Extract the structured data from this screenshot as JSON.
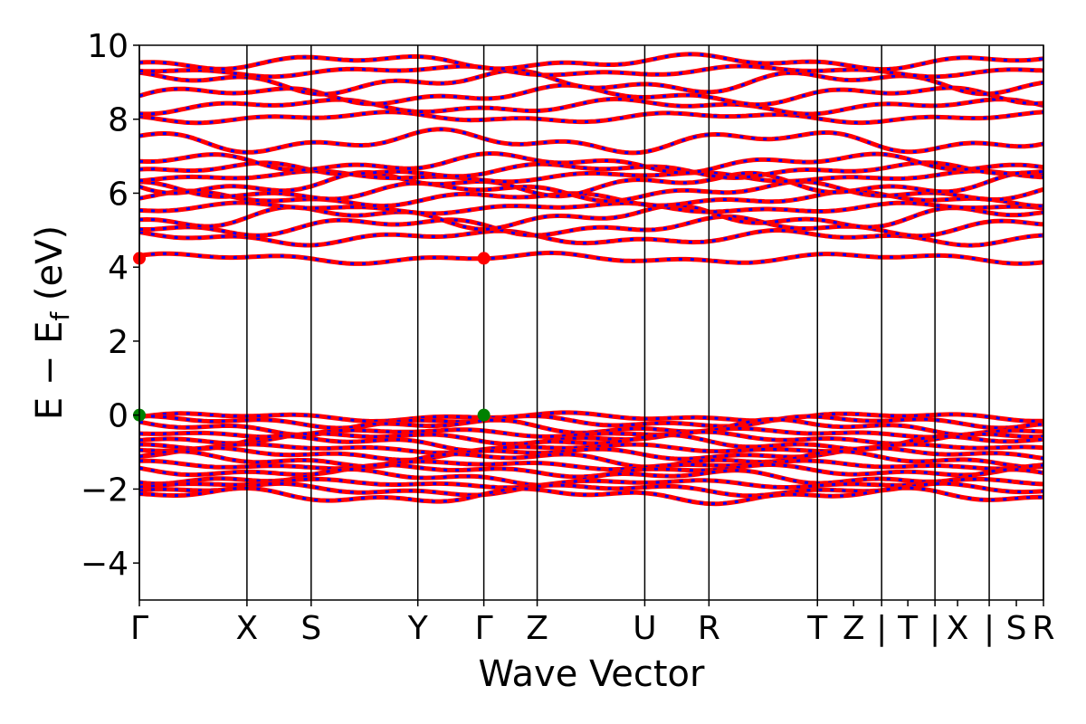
{
  "chart_data": {
    "type": "line",
    "title": "",
    "xlabel": "Wave Vector",
    "ylabel": "E − E",
    "ylabel_subscript": "f",
    "ylabel_unit": " (eV)",
    "ylim": [
      -5,
      10
    ],
    "yticks": [
      -4,
      -2,
      0,
      2,
      4,
      6,
      8,
      10
    ],
    "ytick_labels": [
      "−4",
      "−2",
      "0",
      "2",
      "4",
      "6",
      "8",
      "10"
    ],
    "xlim": [
      0,
      1
    ],
    "kpoint_boundaries": [
      0.0,
      0.119,
      0.19,
      0.308,
      0.381,
      0.44,
      0.559,
      0.63,
      0.75,
      0.821,
      0.88,
      0.94,
      1.0
    ],
    "xtick_positions": [
      0.0,
      0.119,
      0.19,
      0.308,
      0.381,
      0.44,
      0.559,
      0.63,
      0.75,
      0.79,
      0.821,
      0.85,
      0.88,
      0.905,
      0.94,
      0.97,
      1.0
    ],
    "xtick_labels": [
      "Γ",
      "X",
      "S",
      "Y",
      "Γ",
      "Z",
      "U",
      "R",
      "T",
      "Z",
      "|",
      "T",
      "|",
      "X",
      "|",
      "S",
      "R"
    ],
    "band_colors": [
      "#ff0000",
      "#0000ff"
    ],
    "vbm": {
      "energy": 0.0,
      "k_positions": [
        0.0,
        0.381
      ],
      "color": "#008000"
    },
    "cbm": {
      "energy": 4.24,
      "k_positions": [
        0.0,
        0.381
      ],
      "color": "#ff0000"
    },
    "valence_band_energies": [
      -0.05,
      -0.18,
      -0.32,
      -0.48,
      -0.62,
      -0.75,
      -0.9,
      -1.05,
      -1.2,
      -1.35,
      -1.5,
      -1.68,
      -1.85,
      -2.02,
      -2.18
    ],
    "conduction_band_energies": [
      4.24,
      4.8,
      5.1,
      5.35,
      5.6,
      5.85,
      6.05,
      6.25,
      6.45,
      6.62,
      6.82,
      7.4,
      8.05,
      8.35,
      8.65,
      9.0,
      9.3,
      9.55
    ]
  }
}
